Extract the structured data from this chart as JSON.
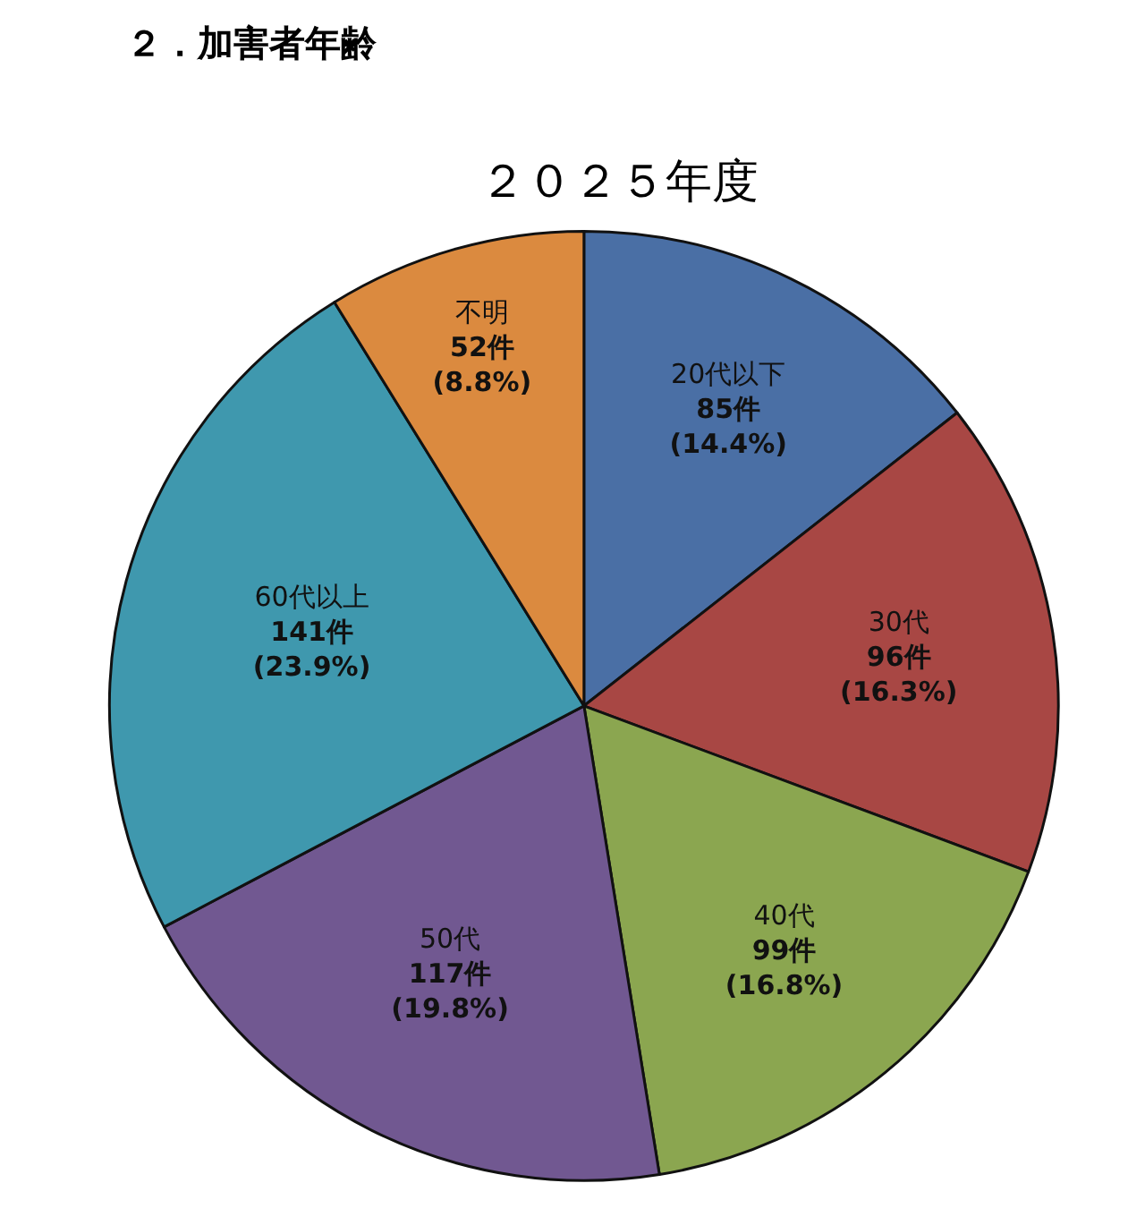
{
  "chart_data": {
    "type": "pie",
    "title": "２．加害者年齢",
    "subtitle": "２０２５年度",
    "categories": [
      "20代以下",
      "30代",
      "40代",
      "50代",
      "60代以上",
      "不明"
    ],
    "values": [
      85,
      96,
      99,
      117,
      141,
      52
    ],
    "value_labels": [
      "85件\n(14.4%)",
      "96件\n(16.3%)",
      "99件\n(16.8%)",
      "117件\n(19.8%)",
      "141件\n(23.9%)",
      "52件\n(8.8%)"
    ],
    "colors": [
      "#4a6fa5",
      "#a84744",
      "#8ba650",
      "#715891",
      "#3f98ae",
      "#db8a3f"
    ],
    "legend": false
  }
}
